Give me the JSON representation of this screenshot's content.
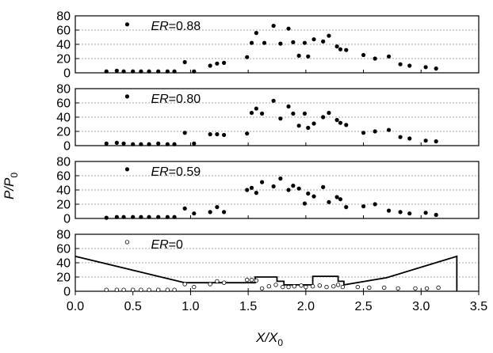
{
  "chart_data": {
    "type": "scatter",
    "xlabel": {
      "main": "X/X",
      "sub": "0"
    },
    "ylabel": {
      "main": "P/P",
      "sub": "0"
    },
    "xlim": [
      0.0,
      3.5
    ],
    "x_ticks": [
      "0.0",
      "0.5",
      "1.0",
      "1.5",
      "2.0",
      "2.5",
      "3.0",
      "3.5"
    ],
    "x_tick_values": [
      0.0,
      0.5,
      1.0,
      1.5,
      2.0,
      2.5,
      3.0,
      3.5
    ],
    "ylim": [
      0,
      80
    ],
    "y_ticks": [
      "0",
      "20",
      "40",
      "60",
      "80"
    ],
    "y_tick_values": [
      0,
      20,
      40,
      60,
      80
    ],
    "grid": "horizontal dashed",
    "panels": [
      {
        "label_italic": "ER",
        "label_value": "=0.88",
        "marker": "filled",
        "x": [
          0.27,
          0.36,
          0.42,
          0.5,
          0.57,
          0.64,
          0.72,
          0.8,
          0.86,
          0.95,
          1.03,
          1.17,
          1.23,
          1.29,
          1.49,
          1.53,
          1.57,
          1.64,
          1.72,
          1.78,
          1.85,
          1.89,
          1.94,
          1.99,
          2.02,
          2.07,
          2.15,
          2.2,
          2.27,
          2.3,
          2.35,
          2.5,
          2.6,
          2.72,
          2.82,
          2.9,
          3.04,
          3.13
        ],
        "y": [
          2,
          3,
          2,
          2,
          2,
          2,
          2,
          2,
          2,
          15,
          2,
          10,
          13,
          14,
          22,
          42,
          56,
          42,
          66,
          41,
          62,
          43,
          24,
          42,
          23,
          47,
          44,
          52,
          37,
          33,
          32,
          25,
          20,
          23,
          12,
          10,
          8,
          6
        ],
        "highlight": {
          "x": 0.45,
          "y": 68
        }
      },
      {
        "label_italic": "ER",
        "label_value": "=0.80",
        "marker": "filled",
        "x": [
          0.27,
          0.36,
          0.42,
          0.5,
          0.57,
          0.64,
          0.72,
          0.8,
          0.86,
          0.95,
          1.03,
          1.17,
          1.23,
          1.29,
          1.49,
          1.53,
          1.57,
          1.62,
          1.72,
          1.78,
          1.85,
          1.89,
          1.94,
          1.99,
          2.02,
          2.07,
          2.15,
          2.2,
          2.27,
          2.3,
          2.35,
          2.5,
          2.6,
          2.72,
          2.82,
          2.9,
          3.04,
          3.13
        ],
        "y": [
          3,
          4,
          3,
          2,
          2,
          2,
          3,
          2,
          2,
          18,
          3,
          16,
          16,
          15,
          17,
          46,
          52,
          45,
          63,
          38,
          55,
          45,
          28,
          45,
          25,
          31,
          40,
          46,
          36,
          32,
          29,
          18,
          20,
          22,
          12,
          10,
          7,
          6
        ],
        "highlight": {
          "x": 0.45,
          "y": 69
        }
      },
      {
        "label_italic": "ER",
        "label_value": "=0.59",
        "marker": "filled",
        "x": [
          0.27,
          0.36,
          0.42,
          0.5,
          0.57,
          0.64,
          0.72,
          0.8,
          0.86,
          0.95,
          1.03,
          1.17,
          1.23,
          1.29,
          1.49,
          1.53,
          1.57,
          1.62,
          1.72,
          1.78,
          1.85,
          1.89,
          1.94,
          1.99,
          2.02,
          2.07,
          2.15,
          2.2,
          2.27,
          2.3,
          2.35,
          2.5,
          2.6,
          2.72,
          2.82,
          2.9,
          3.04,
          3.13
        ],
        "y": [
          1,
          2,
          2,
          2,
          2,
          2,
          2,
          2,
          2,
          14,
          7,
          9,
          16,
          9,
          40,
          43,
          36,
          51,
          45,
          56,
          40,
          46,
          42,
          21,
          35,
          31,
          44,
          23,
          30,
          27,
          16,
          17,
          20,
          11,
          9,
          7,
          8,
          5
        ],
        "highlight": {
          "x": 0.45,
          "y": 69
        }
      },
      {
        "label_italic": "ER",
        "label_value": "=0",
        "marker": "open",
        "x": [
          0.27,
          0.36,
          0.42,
          0.5,
          0.57,
          0.64,
          0.72,
          0.8,
          0.86,
          0.95,
          1.03,
          1.17,
          1.23,
          1.29,
          1.49,
          1.53,
          1.57,
          1.62,
          1.68,
          1.74,
          1.8,
          1.85,
          1.9,
          1.96,
          2.0,
          2.06,
          2.12,
          2.18,
          2.24,
          2.28,
          2.32,
          2.45,
          2.55,
          2.68,
          2.8,
          2.95,
          3.05,
          3.15
        ],
        "y": [
          2,
          2,
          2,
          2,
          2,
          2,
          2,
          2,
          2,
          10,
          6,
          10,
          14,
          12,
          16,
          16,
          15,
          4,
          7,
          9,
          6,
          6,
          7,
          8,
          6,
          7,
          8,
          6,
          7,
          9,
          6,
          6,
          5,
          5,
          4,
          4,
          4,
          5
        ],
        "highlight": {
          "x": 0.45,
          "y": 69
        },
        "geometry_profile": {
          "x": [
            0.0,
            0.95,
            1.06,
            1.56,
            1.56,
            1.75,
            1.75,
            1.81,
            1.81,
            2.06,
            2.06,
            2.28,
            2.28,
            2.33,
            2.33,
            2.7,
            3.31,
            3.31
          ],
          "y": [
            49,
            12,
            12,
            12,
            20,
            20,
            14,
            14,
            9,
            9,
            21,
            21,
            14,
            14,
            9,
            19,
            49,
            0
          ]
        }
      }
    ]
  }
}
